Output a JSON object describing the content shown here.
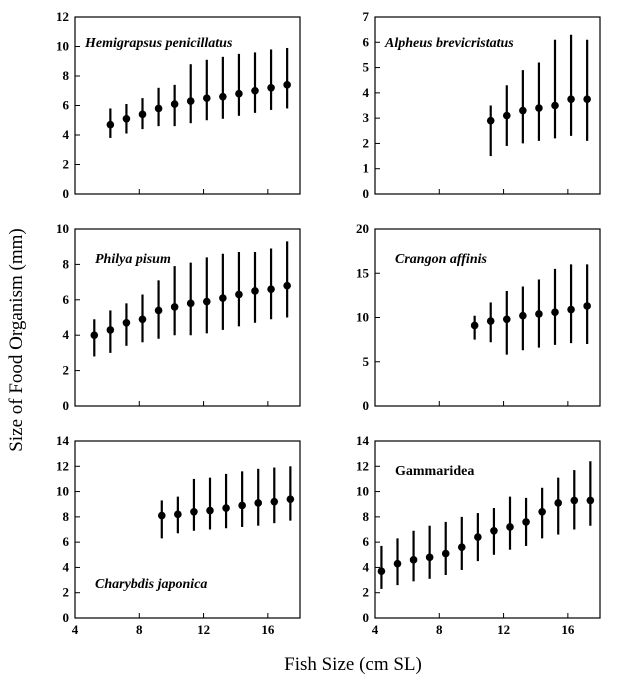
{
  "figure": {
    "ylabel": "Size of Food Organism (mm)",
    "xlabel": "Fish Size (cm SL)"
  },
  "chart_data": [
    {
      "type": "scatter",
      "title": "Hemigrapsus penicillatus",
      "italic": true,
      "ylim": [
        0,
        12
      ],
      "yticks": [
        0,
        2,
        4,
        6,
        8,
        10,
        12
      ],
      "xlim": [
        4,
        18
      ],
      "xticks": [
        4,
        8,
        12,
        16
      ],
      "x": [
        6.2,
        7.2,
        8.2,
        9.2,
        10.2,
        11.2,
        12.2,
        13.2,
        14.2,
        15.2,
        16.2,
        17.2
      ],
      "mean": [
        4.7,
        5.1,
        5.4,
        5.8,
        6.1,
        6.3,
        6.5,
        6.6,
        6.8,
        7.0,
        7.2,
        7.4
      ],
      "lower": [
        3.8,
        4.1,
        4.4,
        4.6,
        4.6,
        4.8,
        5.0,
        5.1,
        5.3,
        5.5,
        5.7,
        5.8
      ],
      "upper": [
        5.8,
        6.1,
        6.5,
        7.2,
        7.4,
        8.8,
        9.1,
        9.3,
        9.5,
        9.6,
        9.8,
        9.9
      ]
    },
    {
      "type": "scatter",
      "title": "Alpheus brevicristatus",
      "italic": true,
      "ylim": [
        0,
        7
      ],
      "yticks": [
        0,
        1,
        2,
        3,
        4,
        5,
        6,
        7
      ],
      "xlim": [
        4,
        18
      ],
      "xticks": [
        4,
        8,
        12,
        16
      ],
      "x": [
        11.2,
        12.2,
        13.2,
        14.2,
        15.2,
        16.2,
        17.2
      ],
      "mean": [
        2.9,
        3.1,
        3.3,
        3.4,
        3.5,
        3.75,
        3.75
      ],
      "lower": [
        1.5,
        1.9,
        2.0,
        2.1,
        2.2,
        2.3,
        2.1
      ],
      "upper": [
        3.5,
        4.3,
        4.9,
        5.2,
        6.1,
        6.3,
        6.1
      ]
    },
    {
      "type": "scatter",
      "title": "Philya pisum",
      "italic": true,
      "ylim": [
        0,
        10
      ],
      "yticks": [
        0,
        2,
        4,
        6,
        8,
        10
      ],
      "xlim": [
        4,
        18
      ],
      "xticks": [
        4,
        8,
        12,
        16
      ],
      "x": [
        5.2,
        6.2,
        7.2,
        8.2,
        9.2,
        10.2,
        11.2,
        12.2,
        13.2,
        14.2,
        15.2,
        16.2,
        17.2
      ],
      "mean": [
        4.0,
        4.3,
        4.7,
        4.9,
        5.4,
        5.6,
        5.8,
        5.9,
        6.1,
        6.3,
        6.5,
        6.6,
        6.8
      ],
      "lower": [
        2.8,
        3.0,
        3.4,
        3.6,
        3.8,
        4.0,
        4.0,
        4.1,
        4.3,
        4.5,
        4.7,
        4.9,
        5.0
      ],
      "upper": [
        4.9,
        5.4,
        5.8,
        6.3,
        7.1,
        7.9,
        8.1,
        8.4,
        8.6,
        8.7,
        8.7,
        8.9,
        9.3
      ]
    },
    {
      "type": "scatter",
      "title": "Crangon affinis",
      "italic": true,
      "ylim": [
        0,
        20
      ],
      "yticks": [
        0,
        5,
        10,
        15,
        20
      ],
      "xlim": [
        4,
        18
      ],
      "xticks": [
        4,
        8,
        12,
        16
      ],
      "x": [
        10.2,
        11.2,
        12.2,
        13.2,
        14.2,
        15.2,
        16.2,
        17.2
      ],
      "mean": [
        9.1,
        9.6,
        9.8,
        10.2,
        10.4,
        10.6,
        10.9,
        11.3
      ],
      "lower": [
        7.5,
        7.2,
        5.8,
        6.3,
        6.6,
        6.9,
        7.1,
        7.0
      ],
      "upper": [
        10.2,
        11.7,
        13.0,
        13.5,
        14.3,
        15.5,
        16.0,
        16.0
      ]
    },
    {
      "type": "scatter",
      "title": "Charybdis japonica",
      "italic": true,
      "ylim": [
        0,
        14
      ],
      "yticks": [
        0,
        2,
        4,
        6,
        8,
        10,
        12,
        14
      ],
      "xlim": [
        4,
        18
      ],
      "xticks": [
        4,
        8,
        12,
        16
      ],
      "x": [
        9.4,
        10.4,
        11.4,
        12.4,
        13.4,
        14.4,
        15.4,
        16.4,
        17.4
      ],
      "mean": [
        8.1,
        8.2,
        8.4,
        8.5,
        8.7,
        8.9,
        9.1,
        9.2,
        9.4
      ],
      "lower": [
        6.3,
        6.7,
        6.9,
        7.0,
        7.1,
        7.2,
        7.3,
        7.5,
        7.7
      ],
      "upper": [
        9.3,
        9.6,
        11.0,
        11.1,
        11.4,
        11.6,
        11.8,
        11.9,
        12.0
      ]
    },
    {
      "type": "scatter",
      "title": "Gammaridea",
      "italic": false,
      "ylim": [
        0,
        14
      ],
      "yticks": [
        0,
        2,
        4,
        6,
        8,
        10,
        12,
        14
      ],
      "xlim": [
        4,
        18
      ],
      "xticks": [
        4,
        8,
        12,
        16
      ],
      "x": [
        4.4,
        5.4,
        6.4,
        7.4,
        8.4,
        9.4,
        10.4,
        11.4,
        12.4,
        13.4,
        14.4,
        15.4,
        16.4,
        17.4
      ],
      "mean": [
        3.7,
        4.3,
        4.6,
        4.8,
        5.1,
        5.6,
        6.4,
        6.9,
        7.2,
        7.6,
        8.4,
        9.1,
        9.3,
        9.3
      ],
      "lower": [
        2.3,
        2.6,
        2.9,
        3.1,
        3.4,
        3.8,
        4.5,
        5.0,
        5.4,
        5.7,
        6.3,
        6.6,
        7.0,
        7.3
      ],
      "upper": [
        5.7,
        6.3,
        6.9,
        7.3,
        7.6,
        8.0,
        8.3,
        8.7,
        9.6,
        9.5,
        10.3,
        11.1,
        11.7,
        12.4
      ]
    }
  ]
}
